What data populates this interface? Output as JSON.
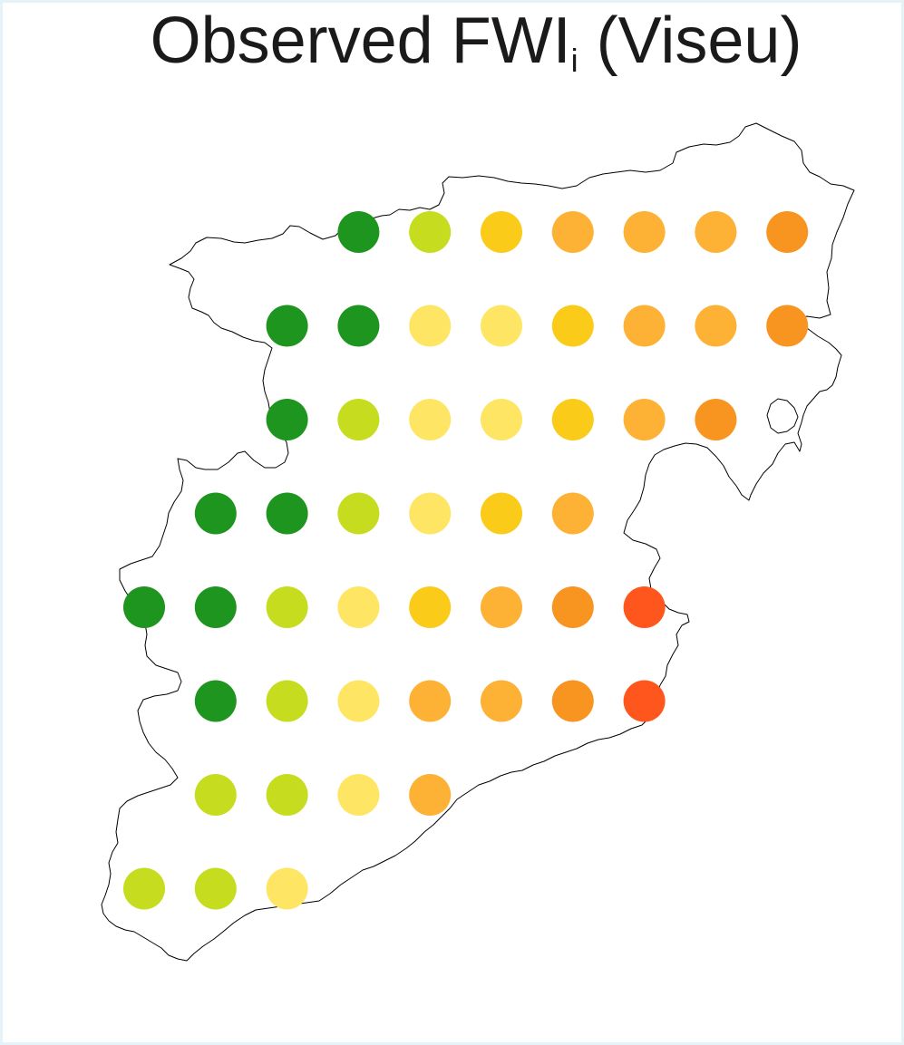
{
  "title": {
    "main": "Observed FWI",
    "subscript": "i",
    "suffix": " (Viseu)"
  },
  "colors": {
    "dark_green": "#1e951e",
    "yellow_green": "#c6dc1e",
    "light_yellow": "#fee664",
    "gold": "#fbcb1a",
    "light_orange": "#fdb135",
    "orange": "#f89420",
    "red_orange": "#ff561d",
    "outline": "#000000"
  },
  "grid": {
    "columns": [
      1,
      2,
      3,
      4,
      5,
      6,
      7,
      8,
      9,
      10
    ],
    "rows": [
      1,
      2,
      3,
      4,
      5,
      6,
      7,
      8
    ]
  },
  "points": [
    {
      "row": 1,
      "col": 4,
      "color": "dark_green"
    },
    {
      "row": 1,
      "col": 5,
      "color": "yellow_green"
    },
    {
      "row": 1,
      "col": 6,
      "color": "gold"
    },
    {
      "row": 1,
      "col": 7,
      "color": "light_orange"
    },
    {
      "row": 1,
      "col": 8,
      "color": "light_orange"
    },
    {
      "row": 1,
      "col": 9,
      "color": "light_orange"
    },
    {
      "row": 1,
      "col": 10,
      "color": "orange"
    },
    {
      "row": 2,
      "col": 3,
      "color": "dark_green"
    },
    {
      "row": 2,
      "col": 4,
      "color": "dark_green"
    },
    {
      "row": 2,
      "col": 5,
      "color": "light_yellow"
    },
    {
      "row": 2,
      "col": 6,
      "color": "light_yellow"
    },
    {
      "row": 2,
      "col": 7,
      "color": "gold"
    },
    {
      "row": 2,
      "col": 8,
      "color": "light_orange"
    },
    {
      "row": 2,
      "col": 9,
      "color": "light_orange"
    },
    {
      "row": 2,
      "col": 10,
      "color": "orange"
    },
    {
      "row": 3,
      "col": 3,
      "color": "dark_green"
    },
    {
      "row": 3,
      "col": 4,
      "color": "yellow_green"
    },
    {
      "row": 3,
      "col": 5,
      "color": "light_yellow"
    },
    {
      "row": 3,
      "col": 6,
      "color": "light_yellow"
    },
    {
      "row": 3,
      "col": 7,
      "color": "gold"
    },
    {
      "row": 3,
      "col": 8,
      "color": "light_orange"
    },
    {
      "row": 3,
      "col": 9,
      "color": "orange"
    },
    {
      "row": 4,
      "col": 2,
      "color": "dark_green"
    },
    {
      "row": 4,
      "col": 3,
      "color": "dark_green"
    },
    {
      "row": 4,
      "col": 4,
      "color": "yellow_green"
    },
    {
      "row": 4,
      "col": 5,
      "color": "light_yellow"
    },
    {
      "row": 4,
      "col": 6,
      "color": "gold"
    },
    {
      "row": 4,
      "col": 7,
      "color": "light_orange"
    },
    {
      "row": 5,
      "col": 1,
      "color": "dark_green"
    },
    {
      "row": 5,
      "col": 2,
      "color": "dark_green"
    },
    {
      "row": 5,
      "col": 3,
      "color": "yellow_green"
    },
    {
      "row": 5,
      "col": 4,
      "color": "light_yellow"
    },
    {
      "row": 5,
      "col": 5,
      "color": "gold"
    },
    {
      "row": 5,
      "col": 6,
      "color": "light_orange"
    },
    {
      "row": 5,
      "col": 7,
      "color": "orange"
    },
    {
      "row": 5,
      "col": 8,
      "color": "red_orange"
    },
    {
      "row": 6,
      "col": 2,
      "color": "dark_green"
    },
    {
      "row": 6,
      "col": 3,
      "color": "yellow_green"
    },
    {
      "row": 6,
      "col": 4,
      "color": "light_yellow"
    },
    {
      "row": 6,
      "col": 5,
      "color": "light_orange"
    },
    {
      "row": 6,
      "col": 6,
      "color": "light_orange"
    },
    {
      "row": 6,
      "col": 7,
      "color": "orange"
    },
    {
      "row": 6,
      "col": 8,
      "color": "red_orange"
    },
    {
      "row": 7,
      "col": 2,
      "color": "yellow_green"
    },
    {
      "row": 7,
      "col": 3,
      "color": "yellow_green"
    },
    {
      "row": 7,
      "col": 4,
      "color": "light_yellow"
    },
    {
      "row": 7,
      "col": 5,
      "color": "light_orange"
    },
    {
      "row": 8,
      "col": 1,
      "color": "yellow_green"
    },
    {
      "row": 8,
      "col": 2,
      "color": "yellow_green"
    },
    {
      "row": 8,
      "col": 3,
      "color": "light_yellow"
    }
  ]
}
